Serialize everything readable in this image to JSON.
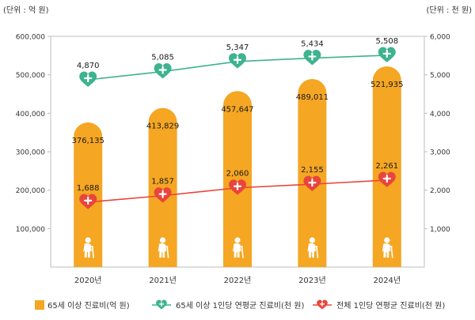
{
  "chart_data": {
    "type": "bar",
    "categories": [
      "2020년",
      "2021년",
      "2022년",
      "2023년",
      "2024년"
    ],
    "left_unit": "(단위 : 억 원)",
    "right_unit": "(단위 : 천 원)",
    "left_axis": {
      "ylim": [
        0,
        600000
      ],
      "ticks": [
        "600,000",
        "500,000",
        "400,000",
        "300,000",
        "200,000",
        "100,000"
      ]
    },
    "right_axis": {
      "ylim": [
        0,
        6000
      ],
      "ticks": [
        "6,000",
        "5,000",
        "4,000",
        "3,000",
        "2,000",
        "1,000"
      ]
    },
    "series": [
      {
        "name": "65세 이상 진료비(억 원)",
        "kind": "bar",
        "axis": "left",
        "color": "#F5A623",
        "values": [
          376135,
          413829,
          457647,
          489011,
          521935
        ],
        "labels": [
          "376,135",
          "413,829",
          "457,647",
          "489,011",
          "521,935"
        ]
      },
      {
        "name": "65세 이상 1인당 연평균 진료비(천 원)",
        "kind": "line",
        "axis": "right",
        "color": "#3DB38E",
        "values": [
          4870,
          5085,
          5347,
          5434,
          5508
        ],
        "labels": [
          "4,870",
          "5,085",
          "5,347",
          "5,434",
          "5,508"
        ]
      },
      {
        "name": "전체 1인당 연평균 진료비(천 원)",
        "kind": "line",
        "axis": "right",
        "color": "#E8453C",
        "values": [
          1688,
          1857,
          2060,
          2155,
          2261
        ],
        "labels": [
          "1,688",
          "1,857",
          "2,060",
          "2,155",
          "2,261"
        ]
      }
    ]
  }
}
